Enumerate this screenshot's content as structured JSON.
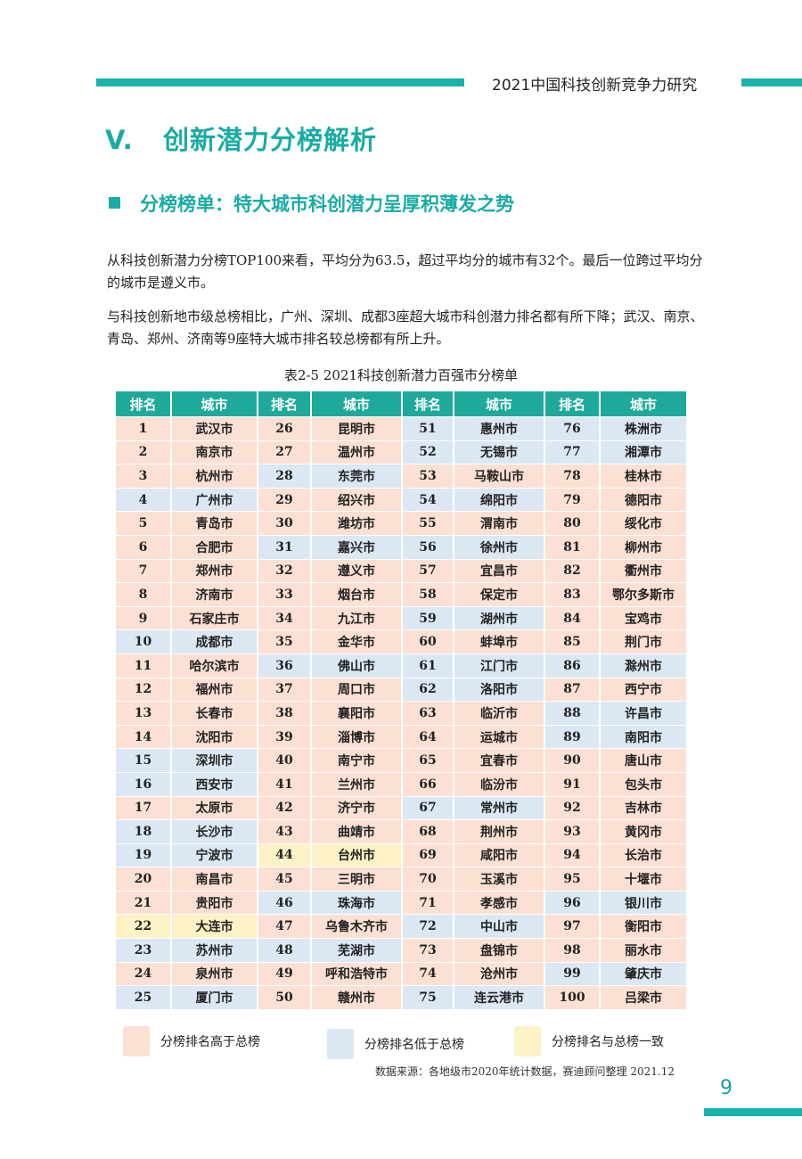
{
  "header": {
    "title": "2021中国科技创新竞争力研究"
  },
  "section_title": "V.   创新潜力分榜解析",
  "subsection_title": "分榜榜单：特大城市科创潜力呈厚积薄发之势",
  "paragraphs": [
    "从科技创新潜力分榜TOP100来看，平均分为63.5，超过平均分的城市有32个。最后一位跨过平均分的城市是遵义市。",
    "与科技创新地市级总榜相比，广州、深圳、成都3座超大城市科创潜力排名都有所下降；武汉、南京、青岛、郑州、济南等9座特大城市排名较总榜都有所上升。"
  ],
  "table": {
    "caption": "表2-5 2021科技创新潜力百强市分榜单",
    "header_rank": "排名",
    "header_city": "城市",
    "colors": {
      "higher": "#fbe0d3",
      "lower": "#dbe7f3",
      "same": "#fdf2c6",
      "header": "#1ea99b"
    },
    "entries": [
      {
        "rank": "1",
        "city": "武汉市",
        "status": "higher"
      },
      {
        "rank": "2",
        "city": "南京市",
        "status": "higher"
      },
      {
        "rank": "3",
        "city": "杭州市",
        "status": "higher"
      },
      {
        "rank": "4",
        "city": "广州市",
        "status": "lower"
      },
      {
        "rank": "5",
        "city": "青岛市",
        "status": "higher"
      },
      {
        "rank": "6",
        "city": "合肥市",
        "status": "higher"
      },
      {
        "rank": "7",
        "city": "郑州市",
        "status": "higher"
      },
      {
        "rank": "8",
        "city": "济南市",
        "status": "higher"
      },
      {
        "rank": "9",
        "city": "石家庄市",
        "status": "higher"
      },
      {
        "rank": "10",
        "city": "成都市",
        "status": "lower"
      },
      {
        "rank": "11",
        "city": "哈尔滨市",
        "status": "higher"
      },
      {
        "rank": "12",
        "city": "福州市",
        "status": "higher"
      },
      {
        "rank": "13",
        "city": "长春市",
        "status": "higher"
      },
      {
        "rank": "14",
        "city": "沈阳市",
        "status": "higher"
      },
      {
        "rank": "15",
        "city": "深圳市",
        "status": "lower"
      },
      {
        "rank": "16",
        "city": "西安市",
        "status": "lower"
      },
      {
        "rank": "17",
        "city": "太原市",
        "status": "higher"
      },
      {
        "rank": "18",
        "city": "长沙市",
        "status": "lower"
      },
      {
        "rank": "19",
        "city": "宁波市",
        "status": "lower"
      },
      {
        "rank": "20",
        "city": "南昌市",
        "status": "higher"
      },
      {
        "rank": "21",
        "city": "贵阳市",
        "status": "higher"
      },
      {
        "rank": "22",
        "city": "大连市",
        "status": "same"
      },
      {
        "rank": "23",
        "city": "苏州市",
        "status": "lower"
      },
      {
        "rank": "24",
        "city": "泉州市",
        "status": "higher"
      },
      {
        "rank": "25",
        "city": "厦门市",
        "status": "lower"
      },
      {
        "rank": "26",
        "city": "昆明市",
        "status": "higher"
      },
      {
        "rank": "27",
        "city": "温州市",
        "status": "higher"
      },
      {
        "rank": "28",
        "city": "东莞市",
        "status": "lower"
      },
      {
        "rank": "29",
        "city": "绍兴市",
        "status": "higher"
      },
      {
        "rank": "30",
        "city": "潍坊市",
        "status": "higher"
      },
      {
        "rank": "31",
        "city": "嘉兴市",
        "status": "lower"
      },
      {
        "rank": "32",
        "city": "遵义市",
        "status": "higher"
      },
      {
        "rank": "33",
        "city": "烟台市",
        "status": "higher"
      },
      {
        "rank": "34",
        "city": "九江市",
        "status": "higher"
      },
      {
        "rank": "35",
        "city": "金华市",
        "status": "higher"
      },
      {
        "rank": "36",
        "city": "佛山市",
        "status": "lower"
      },
      {
        "rank": "37",
        "city": "周口市",
        "status": "higher"
      },
      {
        "rank": "38",
        "city": "襄阳市",
        "status": "higher"
      },
      {
        "rank": "39",
        "city": "淄博市",
        "status": "higher"
      },
      {
        "rank": "40",
        "city": "南宁市",
        "status": "higher"
      },
      {
        "rank": "41",
        "city": "兰州市",
        "status": "higher"
      },
      {
        "rank": "42",
        "city": "济宁市",
        "status": "higher"
      },
      {
        "rank": "43",
        "city": "曲靖市",
        "status": "higher"
      },
      {
        "rank": "44",
        "city": "台州市",
        "status": "same"
      },
      {
        "rank": "45",
        "city": "三明市",
        "status": "higher"
      },
      {
        "rank": "46",
        "city": "珠海市",
        "status": "lower"
      },
      {
        "rank": "47",
        "city": "乌鲁木齐市",
        "status": "higher"
      },
      {
        "rank": "48",
        "city": "芜湖市",
        "status": "lower"
      },
      {
        "rank": "49",
        "city": "呼和浩特市",
        "status": "higher"
      },
      {
        "rank": "50",
        "city": "赣州市",
        "status": "higher"
      },
      {
        "rank": "51",
        "city": "惠州市",
        "status": "lower"
      },
      {
        "rank": "52",
        "city": "无锡市",
        "status": "lower"
      },
      {
        "rank": "53",
        "city": "马鞍山市",
        "status": "higher"
      },
      {
        "rank": "54",
        "city": "绵阳市",
        "status": "lower"
      },
      {
        "rank": "55",
        "city": "渭南市",
        "status": "higher"
      },
      {
        "rank": "56",
        "city": "徐州市",
        "status": "lower"
      },
      {
        "rank": "57",
        "city": "宜昌市",
        "status": "higher"
      },
      {
        "rank": "58",
        "city": "保定市",
        "status": "higher"
      },
      {
        "rank": "59",
        "city": "湖州市",
        "status": "lower"
      },
      {
        "rank": "60",
        "city": "蚌埠市",
        "status": "higher"
      },
      {
        "rank": "61",
        "city": "江门市",
        "status": "lower"
      },
      {
        "rank": "62",
        "city": "洛阳市",
        "status": "lower"
      },
      {
        "rank": "63",
        "city": "临沂市",
        "status": "higher"
      },
      {
        "rank": "64",
        "city": "运城市",
        "status": "higher"
      },
      {
        "rank": "65",
        "city": "宜春市",
        "status": "higher"
      },
      {
        "rank": "66",
        "city": "临汾市",
        "status": "higher"
      },
      {
        "rank": "67",
        "city": "常州市",
        "status": "lower"
      },
      {
        "rank": "68",
        "city": "荆州市",
        "status": "higher"
      },
      {
        "rank": "69",
        "city": "咸阳市",
        "status": "higher"
      },
      {
        "rank": "70",
        "city": "玉溪市",
        "status": "higher"
      },
      {
        "rank": "71",
        "city": "孝感市",
        "status": "higher"
      },
      {
        "rank": "72",
        "city": "中山市",
        "status": "lower"
      },
      {
        "rank": "73",
        "city": "盘锦市",
        "status": "higher"
      },
      {
        "rank": "74",
        "city": "沧州市",
        "status": "higher"
      },
      {
        "rank": "75",
        "city": "连云港市",
        "status": "lower"
      },
      {
        "rank": "76",
        "city": "株洲市",
        "status": "lower"
      },
      {
        "rank": "77",
        "city": "湘潭市",
        "status": "lower"
      },
      {
        "rank": "78",
        "city": "桂林市",
        "status": "higher"
      },
      {
        "rank": "79",
        "city": "德阳市",
        "status": "higher"
      },
      {
        "rank": "80",
        "city": "绥化市",
        "status": "higher"
      },
      {
        "rank": "81",
        "city": "柳州市",
        "status": "higher"
      },
      {
        "rank": "82",
        "city": "衢州市",
        "status": "higher"
      },
      {
        "rank": "83",
        "city": "鄂尔多斯市",
        "status": "higher"
      },
      {
        "rank": "84",
        "city": "宝鸡市",
        "status": "higher"
      },
      {
        "rank": "85",
        "city": "荆门市",
        "status": "higher"
      },
      {
        "rank": "86",
        "city": "滁州市",
        "status": "lower"
      },
      {
        "rank": "87",
        "city": "西宁市",
        "status": "higher"
      },
      {
        "rank": "88",
        "city": "许昌市",
        "status": "lower"
      },
      {
        "rank": "89",
        "city": "南阳市",
        "status": "lower"
      },
      {
        "rank": "90",
        "city": "唐山市",
        "status": "higher"
      },
      {
        "rank": "91",
        "city": "包头市",
        "status": "higher"
      },
      {
        "rank": "92",
        "city": "吉林市",
        "status": "higher"
      },
      {
        "rank": "93",
        "city": "黄冈市",
        "status": "higher"
      },
      {
        "rank": "94",
        "city": "长治市",
        "status": "higher"
      },
      {
        "rank": "95",
        "city": "十堰市",
        "status": "higher"
      },
      {
        "rank": "96",
        "city": "银川市",
        "status": "lower"
      },
      {
        "rank": "97",
        "city": "衡阳市",
        "status": "higher"
      },
      {
        "rank": "98",
        "city": "丽水市",
        "status": "higher"
      },
      {
        "rank": "99",
        "city": "肇庆市",
        "status": "lower"
      },
      {
        "rank": "100",
        "city": "吕梁市",
        "status": "higher"
      }
    ]
  },
  "legend": {
    "higher": "分榜排名高于总榜",
    "lower": "分榜排名低于总榜",
    "same": "分榜排名与总榜一致"
  },
  "source": "数据来源：各地级市2020年统计数据，赛迪顾问整理 2021.12",
  "page_number": "9"
}
